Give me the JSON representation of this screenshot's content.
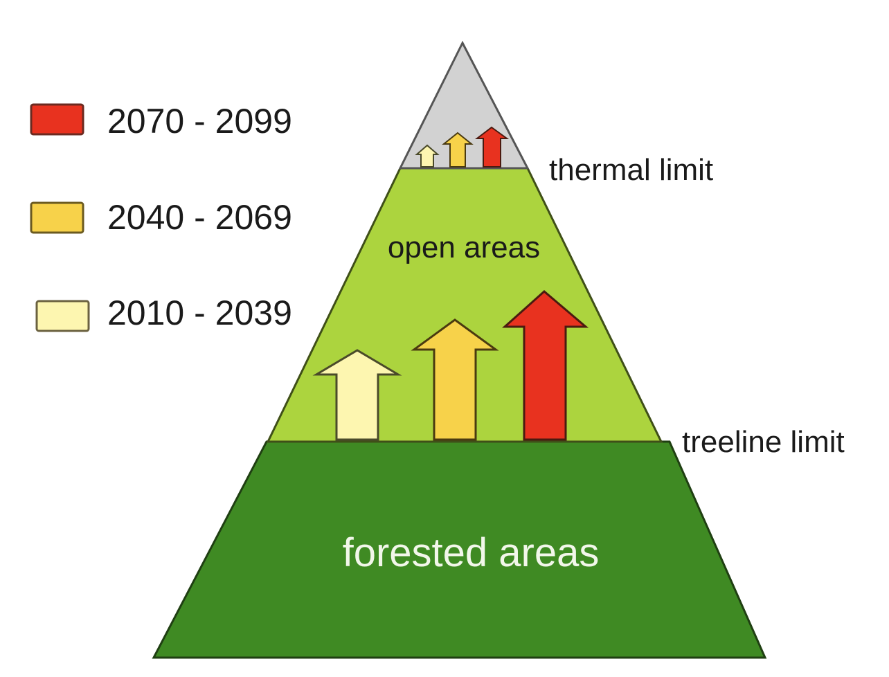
{
  "legend": {
    "items": [
      {
        "label": "2070 - 2099",
        "color": "#e8321f"
      },
      {
        "label": "2040 - 2069",
        "color": "#f7d24a"
      },
      {
        "label": "2010 - 2039",
        "color": "#fdf6b0"
      }
    ]
  },
  "zones": {
    "summit": {
      "color": "#d2d2d2"
    },
    "open": {
      "label": "open areas",
      "color": "#acd43e"
    },
    "forest": {
      "label": "forested areas",
      "color": "#3f8a23"
    }
  },
  "limits": {
    "thermal": "thermal limit",
    "treeline": "treeline limit"
  }
}
